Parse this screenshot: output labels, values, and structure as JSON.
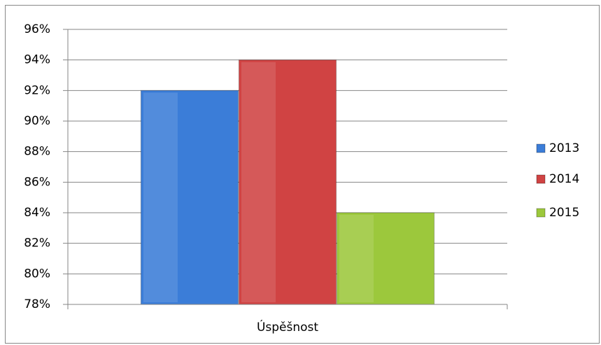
{
  "chart_data": {
    "type": "bar",
    "categories": [
      "Úspěšnost"
    ],
    "series": [
      {
        "name": "2013",
        "color": "#3b7dd8",
        "values": [
          92
        ]
      },
      {
        "name": "2014",
        "color": "#d04343",
        "values": [
          94
        ]
      },
      {
        "name": "2015",
        "color": "#9cc83c",
        "values": [
          84
        ]
      }
    ],
    "ylim": [
      78,
      96
    ],
    "yticks": [
      {
        "value": 78,
        "label": "78%"
      },
      {
        "value": 80,
        "label": "80%"
      },
      {
        "value": 82,
        "label": "82%"
      },
      {
        "value": 84,
        "label": "84%"
      },
      {
        "value": 86,
        "label": "86%"
      },
      {
        "value": 88,
        "label": "88%"
      },
      {
        "value": 90,
        "label": "90%"
      },
      {
        "value": 92,
        "label": "92%"
      },
      {
        "value": 94,
        "label": "94%"
      },
      {
        "value": 96,
        "label": "96%"
      }
    ],
    "grid": true,
    "legend": "right"
  }
}
